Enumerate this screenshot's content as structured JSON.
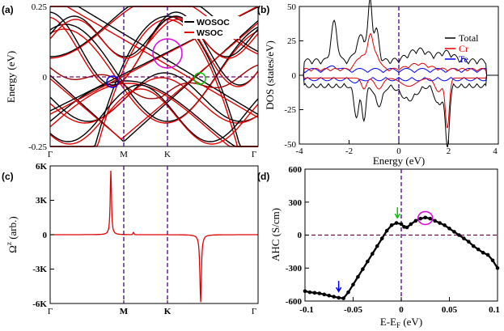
{
  "chart_data": [
    {
      "panel": "(a)",
      "type": "line",
      "title": "",
      "xlabel": "",
      "ylabel": "Energy (eV)",
      "ylim": [
        -0.25,
        0.25
      ],
      "y_ticks": [
        "0.25",
        "0",
        "-0.25"
      ],
      "k_points": [
        "Γ",
        "M",
        "K",
        "Γ"
      ],
      "legend": [
        {
          "label": "WOSOC",
          "color": "#000000"
        },
        {
          "label": "WSOC",
          "color": "#e00000"
        }
      ],
      "series": [
        {
          "name": "WOSOC",
          "color": "#000000"
        },
        {
          "name": "WSOC",
          "color": "#e00000"
        }
      ],
      "annotations": [
        {
          "shape": "circle",
          "color": "#e000e0",
          "location": "near K above Fermi level"
        },
        {
          "shape": "circle",
          "color": "#0000ff",
          "location": "near M at Fermi level"
        },
        {
          "shape": "circle",
          "color": "#00cc00",
          "location": "between K and Γ at Fermi level"
        }
      ]
    },
    {
      "panel": "(b)",
      "type": "line",
      "xlabel": "Energy (eV)",
      "ylabel": "DOS (states/eV)",
      "xlim": [
        -4,
        4
      ],
      "ylim": [
        -50,
        50
      ],
      "x_ticks": [
        "-4",
        "-2",
        "0",
        "2",
        "4"
      ],
      "y_ticks": [
        "50",
        "25",
        "0",
        "-25",
        "-50"
      ],
      "legend": [
        {
          "label": "Total",
          "color": "#000000"
        },
        {
          "label": "Cr",
          "color": "#e00000"
        },
        {
          "label": "Te",
          "color": "#0000ff"
        }
      ]
    },
    {
      "panel": "(c)",
      "type": "line",
      "xlabel": "",
      "ylabel": "Ωz (arb.)",
      "ylabel_main": "Ω",
      "ylabel_sup": "z",
      "ylabel_rest": " (arb.)",
      "ylim": [
        -6000,
        6000
      ],
      "y_ticks": [
        "6K",
        "3K",
        "0",
        "-3K",
        "-6K"
      ],
      "k_points": [
        "Γ",
        "M",
        "K",
        "Γ"
      ],
      "features": [
        {
          "location": "just before M",
          "value": 5600
        },
        {
          "location": "between K and Γ",
          "value": -5900
        }
      ]
    },
    {
      "panel": "(d)",
      "type": "line",
      "xlabel": "E-EF (eV)",
      "xlabel_main": "E-E",
      "xlabel_sub": "F",
      "xlabel_rest": " (eV)",
      "ylabel": "AHC (S/cm)",
      "xlim": [
        -0.1,
        0.1
      ],
      "ylim": [
        -600,
        600
      ],
      "x_ticks": [
        "-0.1",
        "-0.05",
        "0",
        "0.05",
        "0.1"
      ],
      "y_ticks": [
        "600",
        "300",
        "0",
        "-300",
        "-600"
      ],
      "x": [
        -0.1,
        -0.095,
        -0.09,
        -0.085,
        -0.08,
        -0.075,
        -0.07,
        -0.065,
        -0.06,
        -0.055,
        -0.05,
        -0.045,
        -0.04,
        -0.035,
        -0.03,
        -0.025,
        -0.02,
        -0.015,
        -0.01,
        -0.005,
        0.0,
        0.003,
        0.006,
        0.01,
        0.015,
        0.02,
        0.025,
        0.03,
        0.035,
        0.04,
        0.045,
        0.05,
        0.055,
        0.06,
        0.065,
        0.07,
        0.075,
        0.08,
        0.085,
        0.09,
        0.095,
        0.1
      ],
      "y": [
        -510,
        -520,
        -525,
        -530,
        -540,
        -550,
        -560,
        -570,
        -575,
        -520,
        -450,
        -380,
        -310,
        -240,
        -170,
        -100,
        -30,
        40,
        90,
        110,
        100,
        75,
        70,
        100,
        130,
        150,
        160,
        150,
        130,
        110,
        90,
        60,
        30,
        0,
        -30,
        -60,
        -100,
        -130,
        -160,
        -180,
        -230,
        -300
      ],
      "annotations": [
        {
          "shape": "arrow",
          "color": "#0000ff",
          "x": -0.065,
          "y": -520
        },
        {
          "shape": "arrow",
          "color": "#00cc00",
          "x": -0.004,
          "y": 150
        },
        {
          "shape": "ellipse",
          "color": "#e000e0",
          "x": 0.025,
          "y": 155
        }
      ]
    }
  ]
}
